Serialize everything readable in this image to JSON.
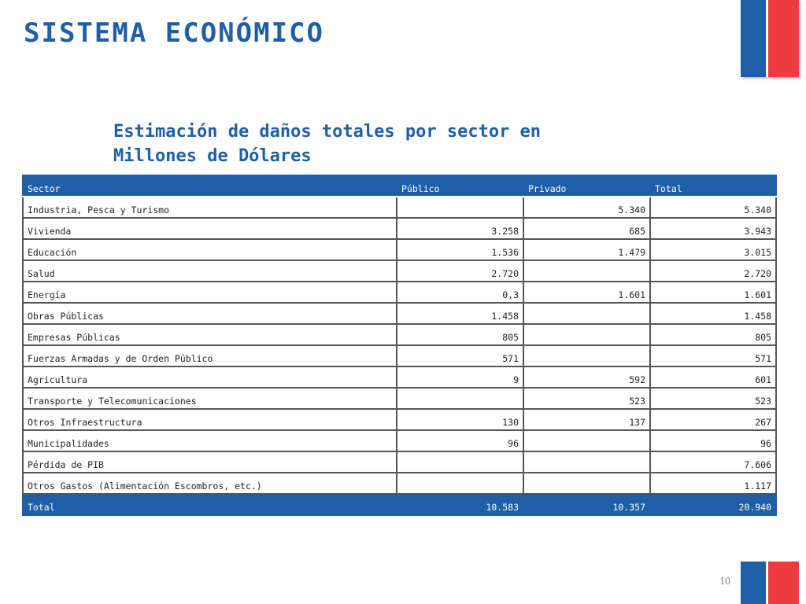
{
  "slide": {
    "title": "SISTEMA ECONÓMICO",
    "subtitle_line1": "Estimación de daños totales por sector en",
    "subtitle_line2": "Millones de Dólares",
    "page_number": "10"
  },
  "colors": {
    "brand_blue": "#1f5fa8",
    "brand_red": "#ef3b3f"
  },
  "table": {
    "headers": [
      "Sector",
      "Público",
      "Privado",
      "Total"
    ],
    "rows": [
      [
        "Industria, Pesca y Turismo",
        "",
        "5.340",
        "5.340"
      ],
      [
        "Vivienda",
        "3.258",
        "685",
        "3.943"
      ],
      [
        "Educación",
        "1.536",
        "1.479",
        "3.015"
      ],
      [
        "Salud",
        "2.720",
        "",
        "2.720"
      ],
      [
        "Energía",
        "0,3",
        "1.601",
        "1.601"
      ],
      [
        "Obras Públicas",
        "1.458",
        "",
        "1.458"
      ],
      [
        "Empresas Públicas",
        "805",
        "",
        "805"
      ],
      [
        "Fuerzas Armadas y de Orden Público",
        "571",
        "",
        "571"
      ],
      [
        "Agricultura",
        "9",
        "592",
        "601"
      ],
      [
        "Transporte y Telecomunicaciones",
        "",
        "523",
        "523"
      ],
      [
        "Otros Infraestructura",
        "130",
        "137",
        "267"
      ],
      [
        "Municipalidades",
        "96",
        "",
        "96"
      ],
      [
        "Pérdida de PIB",
        "",
        "",
        "7.606"
      ],
      [
        "Otros Gastos (Alimentación Escombros, etc.)",
        "",
        "",
        "1.117"
      ]
    ],
    "total_row": [
      "Total",
      "10.583",
      "10.357",
      "20.940"
    ]
  }
}
